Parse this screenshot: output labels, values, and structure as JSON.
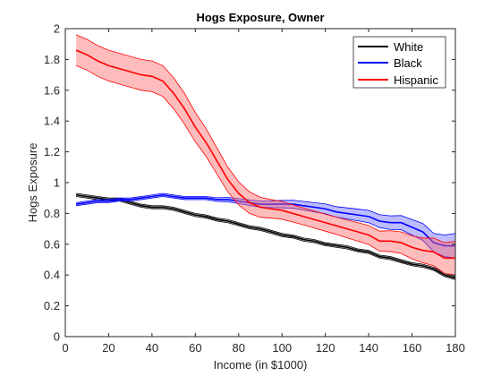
{
  "chart_data": {
    "type": "line",
    "title": "Hogs Exposure, Owner",
    "xlabel": "Income (in $1000)",
    "ylabel": "Hogs Exposure",
    "xlim": [
      0,
      180
    ],
    "ylim": [
      0,
      2
    ],
    "xticks": [
      0,
      20,
      40,
      60,
      80,
      100,
      120,
      140,
      160,
      180
    ],
    "yticks": [
      0,
      0.2,
      0.4,
      0.6,
      0.8,
      1,
      1.2,
      1.4,
      1.6,
      1.8,
      2
    ],
    "xtick_labels": [
      "0",
      "20",
      "40",
      "60",
      "80",
      "100",
      "120",
      "140",
      "160",
      "180"
    ],
    "ytick_labels": [
      "0",
      "0.2",
      "0.4",
      "0.6",
      "0.8",
      "1",
      "1.2",
      "1.4",
      "1.6",
      "1.8",
      "2"
    ],
    "grid": false,
    "legend_position": "top-right",
    "series": [
      {
        "name": "White",
        "color": "#000000",
        "band_color": "#8a8a8a",
        "x": [
          5,
          10,
          15,
          20,
          25,
          30,
          35,
          40,
          45,
          50,
          55,
          60,
          65,
          70,
          75,
          80,
          85,
          90,
          95,
          100,
          105,
          110,
          115,
          120,
          125,
          130,
          135,
          140,
          145,
          150,
          155,
          160,
          165,
          170,
          175,
          180
        ],
        "y": [
          0.92,
          0.91,
          0.9,
          0.89,
          0.89,
          0.87,
          0.85,
          0.84,
          0.84,
          0.83,
          0.81,
          0.79,
          0.78,
          0.76,
          0.75,
          0.73,
          0.71,
          0.7,
          0.68,
          0.66,
          0.65,
          0.63,
          0.62,
          0.6,
          0.59,
          0.58,
          0.56,
          0.55,
          0.52,
          0.51,
          0.49,
          0.47,
          0.46,
          0.44,
          0.4,
          0.38
        ],
        "band": 0.01
      },
      {
        "name": "Black",
        "color": "#0000ff",
        "band_color": "#6a6aff",
        "x": [
          5,
          10,
          15,
          20,
          25,
          30,
          35,
          40,
          45,
          50,
          55,
          60,
          65,
          70,
          75,
          80,
          85,
          90,
          95,
          100,
          105,
          110,
          115,
          120,
          125,
          130,
          135,
          140,
          145,
          150,
          155,
          160,
          165,
          170,
          175,
          180
        ],
        "y": [
          0.86,
          0.87,
          0.88,
          0.88,
          0.89,
          0.89,
          0.9,
          0.91,
          0.92,
          0.91,
          0.9,
          0.9,
          0.9,
          0.89,
          0.89,
          0.88,
          0.87,
          0.86,
          0.86,
          0.86,
          0.86,
          0.85,
          0.84,
          0.83,
          0.81,
          0.8,
          0.79,
          0.78,
          0.75,
          0.74,
          0.74,
          0.71,
          0.68,
          0.61,
          0.59,
          0.59
        ],
        "band": [
          0.01,
          0.01,
          0.01,
          0.01,
          0.01,
          0.01,
          0.01,
          0.01,
          0.01,
          0.01,
          0.01,
          0.01,
          0.01,
          0.012,
          0.014,
          0.016,
          0.018,
          0.02,
          0.022,
          0.024,
          0.026,
          0.028,
          0.03,
          0.032,
          0.034,
          0.036,
          0.038,
          0.04,
          0.042,
          0.044,
          0.046,
          0.05,
          0.055,
          0.06,
          0.07,
          0.08
        ]
      },
      {
        "name": "Hispanic",
        "color": "#ff0000",
        "band_color": "#ff6a6a",
        "x": [
          5,
          10,
          15,
          20,
          25,
          30,
          35,
          40,
          45,
          50,
          55,
          60,
          65,
          70,
          75,
          80,
          85,
          90,
          95,
          100,
          105,
          110,
          115,
          120,
          125,
          130,
          135,
          140,
          145,
          150,
          155,
          160,
          165,
          170,
          175,
          180
        ],
        "y": [
          1.86,
          1.83,
          1.79,
          1.76,
          1.74,
          1.72,
          1.7,
          1.69,
          1.66,
          1.58,
          1.48,
          1.36,
          1.26,
          1.14,
          1.02,
          0.93,
          0.87,
          0.84,
          0.83,
          0.82,
          0.8,
          0.78,
          0.76,
          0.74,
          0.72,
          0.7,
          0.68,
          0.66,
          0.62,
          0.62,
          0.61,
          0.58,
          0.56,
          0.55,
          0.51,
          0.51
        ],
        "band": [
          0.1,
          0.1,
          0.1,
          0.1,
          0.1,
          0.1,
          0.1,
          0.1,
          0.1,
          0.1,
          0.1,
          0.095,
          0.09,
          0.085,
          0.08,
          0.075,
          0.07,
          0.065,
          0.06,
          0.058,
          0.056,
          0.055,
          0.055,
          0.055,
          0.056,
          0.058,
          0.06,
          0.062,
          0.065,
          0.068,
          0.07,
          0.075,
          0.08,
          0.09,
          0.1,
          0.11
        ]
      }
    ]
  }
}
